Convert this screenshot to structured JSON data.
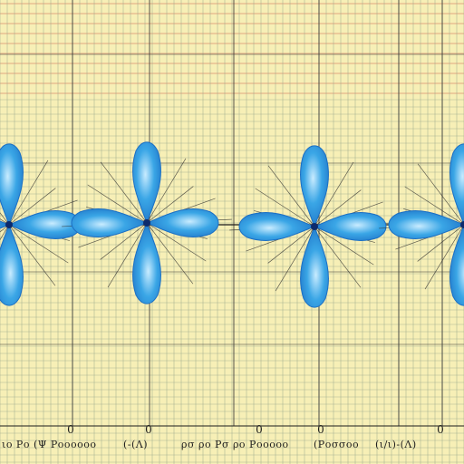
{
  "colors": {
    "paper": "#f7efb6",
    "grid_minor": "#9aa88e",
    "grid_major": "#3a3a3a",
    "band_red": "#d98a6a",
    "lobe_fill": "#3aa6e6",
    "lobe_edge": "#1b6fc4",
    "axis": "#1c1c1c"
  },
  "orbitals": [
    {
      "name": "partial-left-orbital",
      "cx": 10,
      "cy": 248
    },
    {
      "name": "orbital-1",
      "cx": 162,
      "cy": 246
    },
    {
      "name": "orbital-2",
      "cx": 347,
      "cy": 250
    },
    {
      "name": "partial-right-orbital",
      "cx": 512,
      "cy": 248
    }
  ],
  "captions": [
    {
      "name": "caption-1",
      "text": "ιο Ρο (Ψ Ροοοοοο"
    },
    {
      "name": "caption-2",
      "text": "(-(Λ)"
    },
    {
      "name": "caption-3",
      "text": "ρσ ρο Ρσ ρο Ροοοοο"
    },
    {
      "name": "caption-4",
      "text": "(Ροσσοο"
    },
    {
      "name": "caption-5",
      "text": "(ι/ι)-(Λ)"
    }
  ],
  "axis_marks": [
    "0",
    "0",
    "0",
    "0",
    "0"
  ]
}
